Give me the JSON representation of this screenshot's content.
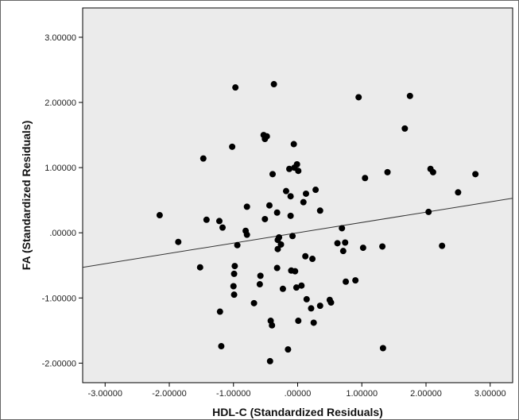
{
  "chart_data": {
    "type": "scatter",
    "xlabel": "HDL-C (Standardized Residuals)",
    "ylabel": "FA (Standardized Residuals)",
    "xlim": [
      -3.35,
      3.35
    ],
    "ylim": [
      -2.3,
      3.45
    ],
    "x_ticks": [
      -3,
      -2,
      -1,
      0,
      1,
      2,
      3
    ],
    "x_tick_labels": [
      "-3.00000",
      "-2.00000",
      "-1.00000",
      ".00000",
      "1.00000",
      "2.00000",
      "3.00000"
    ],
    "y_ticks": [
      -2,
      -1,
      0,
      1,
      2,
      3
    ],
    "y_tick_labels": [
      "-2.00000",
      "-1.00000",
      ".00000",
      "1.00000",
      "2.00000",
      "3.00000"
    ],
    "grid": false,
    "background": "#ebebeb",
    "point_color": "#000000",
    "fit_line": {
      "type": "linear",
      "points": [
        [
          -3.35,
          -0.53
        ],
        [
          3.35,
          0.53
        ]
      ]
    },
    "points": [
      [
        -0.97,
        2.23
      ],
      [
        -0.37,
        2.28
      ],
      [
        0.95,
        2.08
      ],
      [
        1.75,
        2.1
      ],
      [
        -1.47,
        1.14
      ],
      [
        -1.02,
        1.32
      ],
      [
        -0.53,
        1.5
      ],
      [
        -0.51,
        1.44
      ],
      [
        -0.48,
        1.48
      ],
      [
        -0.06,
        1.36
      ],
      [
        1.67,
        1.6
      ],
      [
        -0.39,
        0.9
      ],
      [
        -0.13,
        0.98
      ],
      [
        -0.05,
        1.0
      ],
      [
        -0.01,
        1.05
      ],
      [
        0.01,
        0.95
      ],
      [
        1.05,
        0.84
      ],
      [
        1.4,
        0.93
      ],
      [
        2.07,
        0.98
      ],
      [
        2.11,
        0.93
      ],
      [
        2.77,
        0.9
      ],
      [
        -0.18,
        0.64
      ],
      [
        -0.11,
        0.56
      ],
      [
        0.13,
        0.6
      ],
      [
        0.28,
        0.66
      ],
      [
        -0.79,
        0.4
      ],
      [
        -0.44,
        0.42
      ],
      [
        -0.32,
        0.31
      ],
      [
        -0.51,
        0.21
      ],
      [
        -0.11,
        0.26
      ],
      [
        0.09,
        0.47
      ],
      [
        0.35,
        0.34
      ],
      [
        2.5,
        0.62
      ],
      [
        -2.15,
        0.27
      ],
      [
        -1.42,
        0.2
      ],
      [
        -1.22,
        0.18
      ],
      [
        -1.17,
        0.08
      ],
      [
        -0.81,
        0.03
      ],
      [
        -0.79,
        -0.03
      ],
      [
        -0.29,
        -0.07
      ],
      [
        -0.31,
        -0.11
      ],
      [
        -0.08,
        -0.05
      ],
      [
        0.69,
        0.07
      ],
      [
        2.04,
        0.32
      ],
      [
        -1.86,
        -0.14
      ],
      [
        -0.94,
        -0.19
      ],
      [
        -0.26,
        -0.18
      ],
      [
        -0.31,
        -0.25
      ],
      [
        0.62,
        -0.16
      ],
      [
        0.74,
        -0.15
      ],
      [
        0.71,
        -0.28
      ],
      [
        1.02,
        -0.23
      ],
      [
        1.32,
        -0.21
      ],
      [
        2.25,
        -0.2
      ],
      [
        -1.52,
        -0.53
      ],
      [
        -0.98,
        -0.51
      ],
      [
        -0.99,
        -0.63
      ],
      [
        -0.58,
        -0.66
      ],
      [
        -0.32,
        -0.54
      ],
      [
        -0.1,
        -0.58
      ],
      [
        -0.04,
        -0.59
      ],
      [
        0.12,
        -0.36
      ],
      [
        0.23,
        -0.4
      ],
      [
        -1.0,
        -0.82
      ],
      [
        -0.99,
        -0.95
      ],
      [
        -0.59,
        -0.79
      ],
      [
        -0.68,
        -1.08
      ],
      [
        -0.23,
        -0.86
      ],
      [
        -0.02,
        -0.84
      ],
      [
        0.06,
        -0.81
      ],
      [
        0.75,
        -0.75
      ],
      [
        0.9,
        -0.73
      ],
      [
        -1.21,
        -1.21
      ],
      [
        -0.42,
        -1.35
      ],
      [
        -0.4,
        -1.42
      ],
      [
        0.14,
        -1.02
      ],
      [
        0.21,
        -1.16
      ],
      [
        0.35,
        -1.12
      ],
      [
        0.5,
        -1.03
      ],
      [
        0.52,
        -1.07
      ],
      [
        0.01,
        -1.35
      ],
      [
        0.25,
        -1.38
      ],
      [
        -1.19,
        -1.74
      ],
      [
        -0.15,
        -1.79
      ],
      [
        -0.43,
        -1.97
      ],
      [
        1.33,
        -1.77
      ]
    ]
  }
}
